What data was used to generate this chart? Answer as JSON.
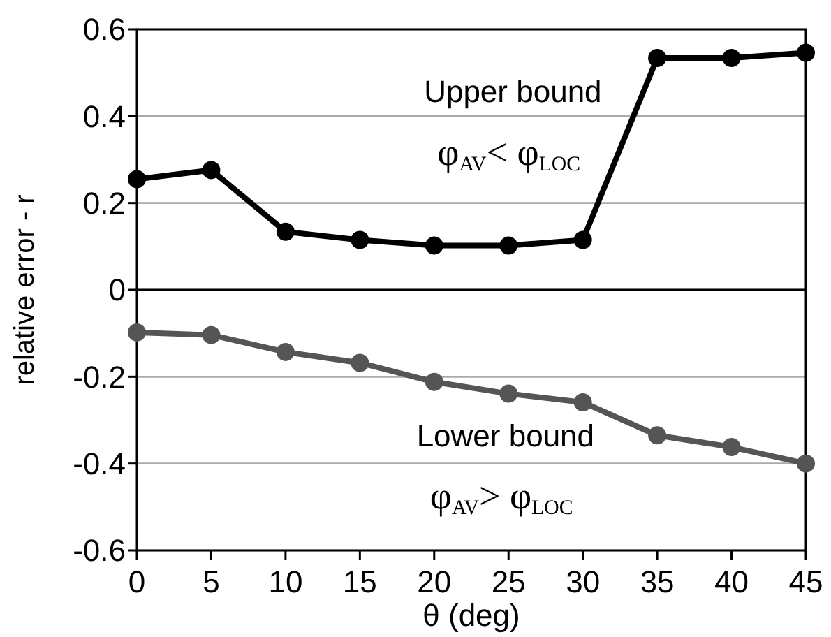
{
  "chart_data": {
    "type": "line",
    "xlabel": "θ (deg)",
    "ylabel": "relative error - r",
    "x": [
      0,
      5,
      10,
      15,
      20,
      25,
      30,
      35,
      40,
      45
    ],
    "series": [
      {
        "color": "#000000",
        "values": [
          0.255,
          0.276,
          0.134,
          0.115,
          0.102,
          0.102,
          0.115,
          0.534,
          0.534,
          0.546
        ]
      },
      {
        "color": "#555555",
        "values": [
          -0.098,
          -0.104,
          -0.143,
          -0.168,
          -0.212,
          -0.239,
          -0.259,
          -0.335,
          -0.362,
          -0.4
        ]
      }
    ],
    "xlim": [
      0,
      45
    ],
    "xticks": [
      0,
      5,
      10,
      15,
      20,
      25,
      30,
      35,
      40,
      45
    ],
    "ylim": [
      -0.6,
      0.6
    ],
    "yticks": [
      -0.6,
      -0.4,
      -0.2,
      0,
      0.2,
      0.4,
      0.6
    ],
    "grid": "y",
    "marker": "circle",
    "line_style": "solid",
    "ref_lines": [
      {
        "axis": "y",
        "value": 0,
        "color": "#000000"
      }
    ],
    "annotations": [
      "Upper bound",
      "φ$_{AV}$< φ$_{LOC}$",
      "Lower bound",
      "φ$_{AV}$> φ$_{LOC}$"
    ]
  }
}
